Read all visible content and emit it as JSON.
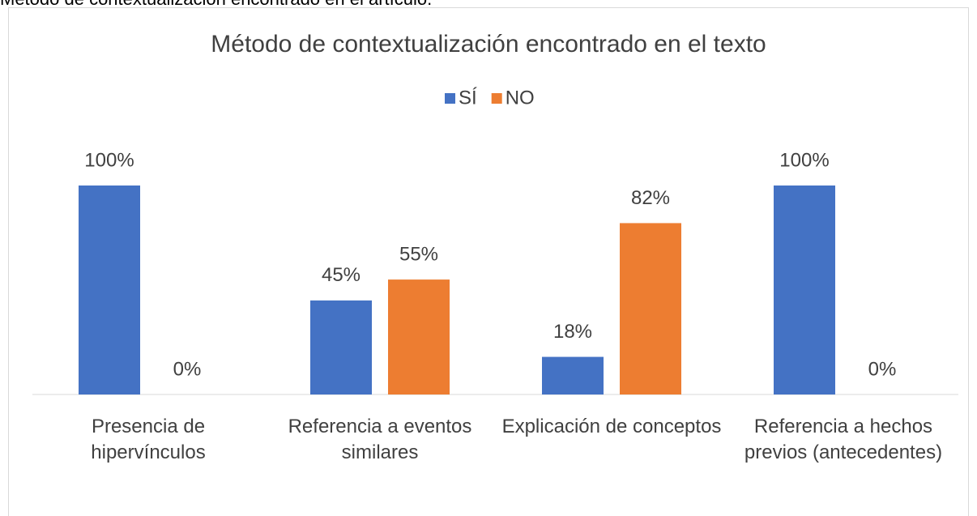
{
  "caption": "Método de contextualización encontrado en el artículo.",
  "chart_data": {
    "type": "bar",
    "title": "Método de contextualización encontrado en el texto",
    "categories": [
      "Presencia de hipervínculos",
      "Referencia a eventos similares",
      "Explicación de conceptos",
      "Referencia a hechos previos (antecedentes)"
    ],
    "series": [
      {
        "name": "SÍ",
        "color": "#4472c4",
        "values": [
          100,
          45,
          18,
          100
        ],
        "value_labels": [
          "100%",
          "45%",
          "18%",
          "100%"
        ]
      },
      {
        "name": "NO",
        "color": "#ed7d31",
        "values": [
          0,
          55,
          82,
          0
        ],
        "value_labels": [
          "0%",
          "55%",
          "82%",
          "0%"
        ]
      }
    ],
    "legend": "top"
  }
}
